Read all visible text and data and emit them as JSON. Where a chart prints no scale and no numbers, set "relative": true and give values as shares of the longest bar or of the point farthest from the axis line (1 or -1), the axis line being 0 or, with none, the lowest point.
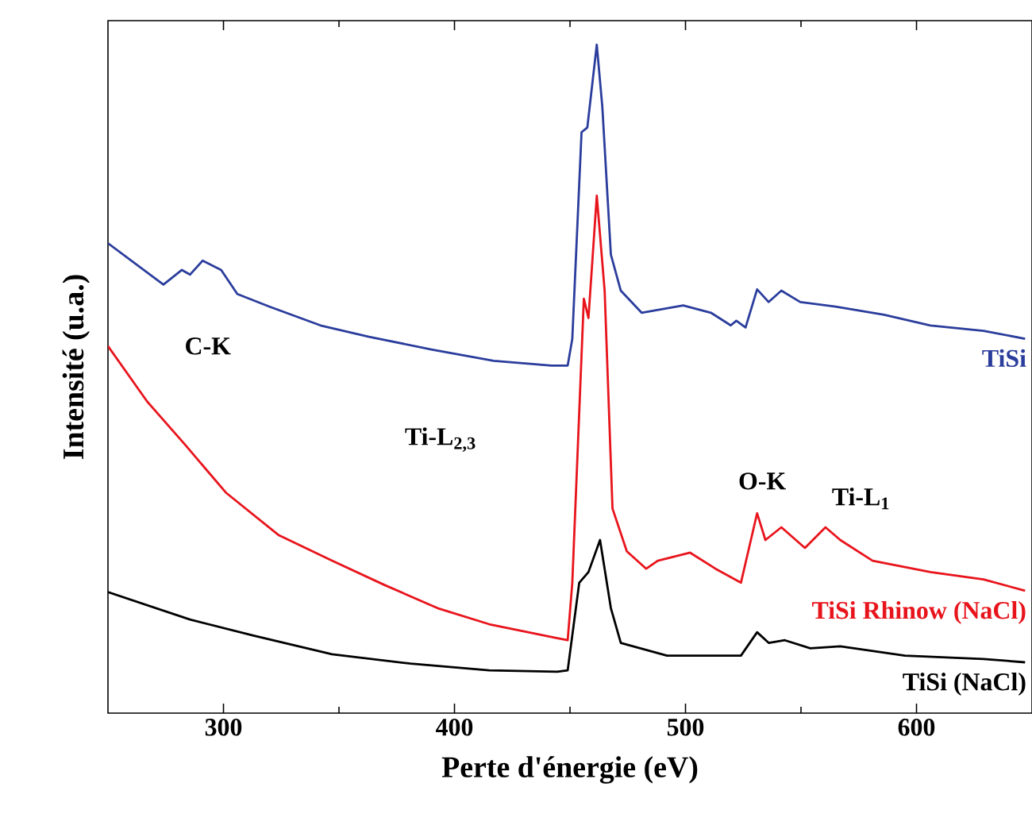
{
  "chart_data": {
    "type": "line",
    "relative": true,
    "xlabel": "Perte d'énergie (eV)",
    "ylabel": "Intensité (u.a.)",
    "xlim": [
      250,
      650
    ],
    "xticks": [
      300,
      400,
      500,
      600
    ],
    "grid": false,
    "marker": "none",
    "line_style": "solid",
    "annotations": [
      "C-K",
      "Ti-L$_{2,3}$",
      "O-K",
      "Ti-L$_{1}$"
    ],
    "series": [
      {
        "name": "TiSi",
        "color": "#2b3d9c",
        "x": [
          250,
          274,
          282,
          285.5,
          291,
          299,
          306,
          320,
          342,
          363,
          390,
          417,
          442,
          449,
          451,
          455,
          457.5,
          461.6,
          464,
          467.7,
          472,
          481,
          499,
          511,
          519.6,
          522,
          526,
          531,
          536,
          541.5,
          549.7,
          565,
          586,
          606,
          629,
          647
        ],
        "values": [
          0.703,
          0.641,
          0.663,
          0.656,
          0.677,
          0.663,
          0.627,
          0.608,
          0.58,
          0.563,
          0.544,
          0.527,
          0.52,
          0.52,
          0.56,
          0.869,
          0.876,
          1.0,
          0.907,
          0.686,
          0.632,
          0.599,
          0.61,
          0.599,
          0.58,
          0.587,
          0.577,
          0.634,
          0.615,
          0.632,
          0.615,
          0.608,
          0.596,
          0.58,
          0.572,
          0.56
        ]
      },
      {
        "name": "TiSi Rhinow (NaCl)",
        "color": "#e8141c",
        "x": [
          250,
          267,
          283.5,
          301,
          324,
          347,
          369.5,
          392.7,
          415,
          444.5,
          449,
          451,
          456,
          458,
          461.6,
          465,
          468.4,
          474.6,
          483,
          488,
          502,
          513,
          524,
          531,
          534.6,
          541.5,
          551.7,
          560.6,
          567,
          581,
          606,
          629,
          647
        ],
        "values": [
          0.549,
          0.466,
          0.401,
          0.33,
          0.266,
          0.228,
          0.192,
          0.157,
          0.133,
          0.112,
          0.109,
          0.195,
          0.62,
          0.591,
          0.774,
          0.632,
          0.306,
          0.242,
          0.216,
          0.228,
          0.24,
          0.216,
          0.195,
          0.299,
          0.259,
          0.278,
          0.247,
          0.278,
          0.259,
          0.228,
          0.211,
          0.2,
          0.183
        ]
      },
      {
        "name": "TiSi (NaCl)",
        "color": "#000000",
        "x": [
          250,
          285.5,
          313,
          347,
          381,
          415,
          444.5,
          449,
          454,
          458,
          463,
          467.7,
          472,
          492,
          524,
          531,
          536,
          543,
          554,
          567,
          595,
          629,
          647
        ],
        "values": [
          0.181,
          0.14,
          0.116,
          0.088,
          0.074,
          0.064,
          0.062,
          0.064,
          0.195,
          0.211,
          0.259,
          0.157,
          0.105,
          0.086,
          0.086,
          0.121,
          0.105,
          0.109,
          0.097,
          0.1,
          0.086,
          0.081,
          0.076
        ]
      }
    ]
  }
}
